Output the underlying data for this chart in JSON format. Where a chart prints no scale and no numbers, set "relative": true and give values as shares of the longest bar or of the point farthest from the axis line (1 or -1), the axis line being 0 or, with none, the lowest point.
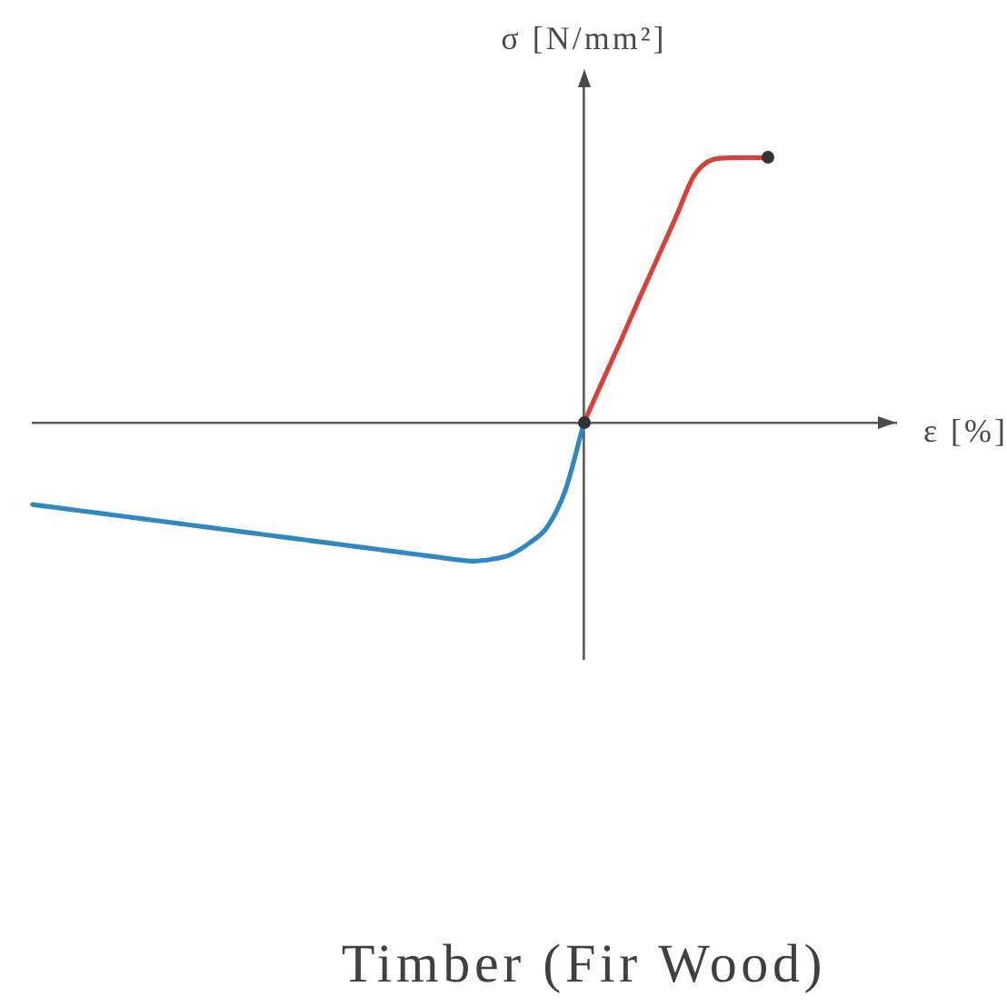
{
  "chart_data": {
    "type": "line",
    "title": "Timber (Fir Wood)",
    "xlabel": "ε [%]",
    "ylabel": "σ [N/mm²]",
    "relative": true,
    "categories": [
      null,
      null,
      null,
      null,
      null,
      null,
      null,
      null,
      null,
      null,
      null,
      null,
      null,
      null,
      null,
      null,
      null,
      null,
      null,
      null,
      null,
      null,
      null,
      null,
      null,
      null,
      null,
      null,
      null,
      null,
      null,
      null,
      null,
      null,
      null,
      null,
      null,
      null,
      null,
      null,
      null,
      null,
      null,
      null,
      null,
      null,
      null,
      null
    ],
    "series": [
      {
        "color": "#2f88bf",
        "values": [
          -0.308,
          -0.317,
          -0.326,
          -0.335,
          -0.344,
          -0.353,
          -0.362,
          -0.371,
          -0.38,
          -0.389,
          -0.398,
          -0.407,
          -0.416,
          -0.425,
          -0.434,
          -0.443,
          -0.452,
          -0.461,
          -0.47,
          -0.479,
          -0.488,
          -0.497,
          -0.506,
          -0.515,
          -0.521,
          -0.514,
          -0.497,
          -0.455,
          -0.393,
          -0.253,
          0,
          null,
          null,
          null,
          null,
          null,
          null,
          null,
          null,
          null,
          null,
          null,
          null,
          null,
          null,
          null,
          null,
          null
        ]
      },
      {
        "color": "#d8403c",
        "values": [
          null,
          null,
          null,
          null,
          null,
          null,
          null,
          null,
          null,
          null,
          null,
          null,
          null,
          null,
          null,
          null,
          null,
          null,
          null,
          null,
          null,
          null,
          null,
          null,
          null,
          null,
          null,
          null,
          null,
          null,
          0,
          0.155,
          0.308,
          0.466,
          0.62,
          0.774,
          0.932,
          0.993,
          1,
          1,
          1,
          null,
          null,
          null,
          null,
          null,
          null,
          null
        ]
      }
    ]
  }
}
